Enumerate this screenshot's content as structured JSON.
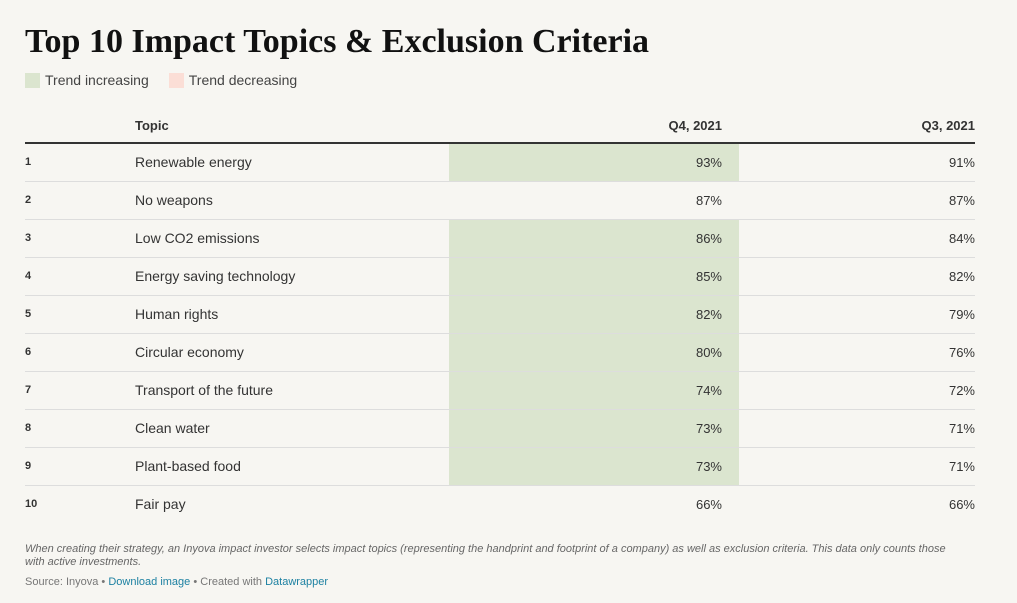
{
  "chart_data": {
    "type": "table",
    "title": "Top 10 Impact Topics & Exclusion Criteria",
    "legend": [
      {
        "label": "Trend increasing",
        "color": "#dbe5cf"
      },
      {
        "label": "Trend decreasing",
        "color": "#fbded6"
      }
    ],
    "columns": {
      "rank": "",
      "topic": "Topic",
      "q4": "Q4, 2021",
      "q3": "Q3, 2021"
    },
    "rows": [
      {
        "rank": "1",
        "topic": "Renewable energy",
        "q4": "93%",
        "q3": "91%",
        "trend": "increasing"
      },
      {
        "rank": "2",
        "topic": "No weapons",
        "q4": "87%",
        "q3": "87%",
        "trend": "none"
      },
      {
        "rank": "3",
        "topic": "Low CO2 emissions",
        "q4": "86%",
        "q3": "84%",
        "trend": "increasing"
      },
      {
        "rank": "4",
        "topic": "Energy saving technology",
        "q4": "85%",
        "q3": "82%",
        "trend": "increasing"
      },
      {
        "rank": "5",
        "topic": "Human rights",
        "q4": "82%",
        "q3": "79%",
        "trend": "increasing"
      },
      {
        "rank": "6",
        "topic": "Circular economy",
        "q4": "80%",
        "q3": "76%",
        "trend": "increasing"
      },
      {
        "rank": "7",
        "topic": "Transport of the future",
        "q4": "74%",
        "q3": "72%",
        "trend": "increasing"
      },
      {
        "rank": "8",
        "topic": "Clean water",
        "q4": "73%",
        "q3": "71%",
        "trend": "increasing"
      },
      {
        "rank": "9",
        "topic": "Plant-based food",
        "q4": "73%",
        "q3": "71%",
        "trend": "increasing"
      },
      {
        "rank": "10",
        "topic": "Fair pay",
        "q4": "66%",
        "q3": "66%",
        "trend": "none"
      }
    ],
    "notes": "When creating their strategy, an Inyova impact investor selects impact topics (representing the handprint and footprint of a company) as well as exclusion criteria. This data only counts those with active investments.",
    "footer": {
      "source": "Source: Inyova",
      "separator": " • ",
      "download_label": "Download image",
      "created_with": "Created with",
      "tool": "Datawrapper"
    }
  }
}
